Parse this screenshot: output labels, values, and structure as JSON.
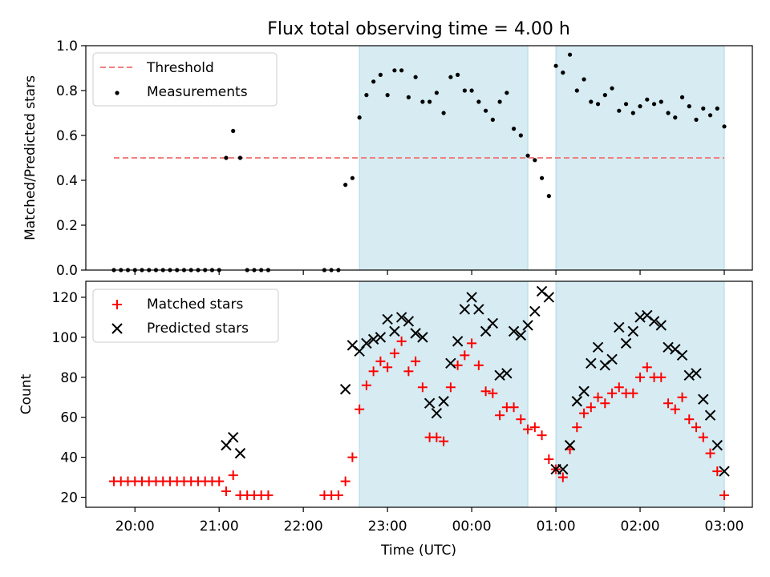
{
  "figure": {
    "title": "Flux total observing time = 4.00 h",
    "xlabel": "Time (UTC)"
  },
  "colors": {
    "shade": "#add8e6",
    "threshold": "#f08080",
    "matched": "#ff0000",
    "predicted": "#000000",
    "measurement": "#000000"
  },
  "chart_data": [
    {
      "type": "scatter",
      "ylabel": "Matched/Predicted stars",
      "ylim": [
        0,
        1.0
      ],
      "yticks": [
        "0.0",
        "0.2",
        "0.4",
        "0.6",
        "0.8",
        "1.0"
      ],
      "grid": false,
      "legend_position": "top-left",
      "shaded_intervals": [
        [
          "22:40",
          "00:40"
        ],
        [
          "01:00",
          "03:00"
        ]
      ],
      "threshold": {
        "name": "Threshold",
        "y": 0.5,
        "x_range": [
          "19:45",
          "03:00"
        ]
      },
      "series": [
        {
          "name": "Measurements",
          "points": [
            [
              "19:45",
              0
            ],
            [
              "19:50",
              0
            ],
            [
              "19:55",
              0
            ],
            [
              "20:00",
              0
            ],
            [
              "20:05",
              0
            ],
            [
              "20:10",
              0
            ],
            [
              "20:15",
              0
            ],
            [
              "20:20",
              0
            ],
            [
              "20:25",
              0
            ],
            [
              "20:30",
              0
            ],
            [
              "20:35",
              0
            ],
            [
              "20:40",
              0
            ],
            [
              "20:45",
              0
            ],
            [
              "20:50",
              0
            ],
            [
              "20:55",
              0
            ],
            [
              "21:00",
              0
            ],
            [
              "21:05",
              0.5
            ],
            [
              "21:10",
              0.62
            ],
            [
              "21:15",
              0.5
            ],
            [
              "21:20",
              0
            ],
            [
              "21:25",
              0
            ],
            [
              "21:30",
              0
            ],
            [
              "21:35",
              0
            ],
            [
              "22:15",
              0
            ],
            [
              "22:20",
              0
            ],
            [
              "22:25",
              0
            ],
            [
              "22:30",
              0.38
            ],
            [
              "22:35",
              0.41
            ],
            [
              "22:40",
              0.68
            ],
            [
              "22:45",
              0.78
            ],
            [
              "22:50",
              0.84
            ],
            [
              "22:55",
              0.87
            ],
            [
              "23:00",
              0.78
            ],
            [
              "23:05",
              0.89
            ],
            [
              "23:10",
              0.89
            ],
            [
              "23:15",
              0.77
            ],
            [
              "23:20",
              0.86
            ],
            [
              "23:25",
              0.75
            ],
            [
              "23:30",
              0.75
            ],
            [
              "23:35",
              0.79
            ],
            [
              "23:40",
              0.7
            ],
            [
              "23:45",
              0.86
            ],
            [
              "23:50",
              0.87
            ],
            [
              "23:55",
              0.8
            ],
            [
              "00:00",
              0.8
            ],
            [
              "00:05",
              0.75
            ],
            [
              "00:10",
              0.71
            ],
            [
              "00:15",
              0.67
            ],
            [
              "00:20",
              0.75
            ],
            [
              "00:25",
              0.79
            ],
            [
              "00:30",
              0.63
            ],
            [
              "00:35",
              0.6
            ],
            [
              "00:40",
              0.51
            ],
            [
              "00:45",
              0.49
            ],
            [
              "00:50",
              0.41
            ],
            [
              "00:55",
              0.33
            ],
            [
              "01:00",
              0.91
            ],
            [
              "01:05",
              0.88
            ],
            [
              "01:10",
              0.96
            ],
            [
              "01:15",
              0.8
            ],
            [
              "01:20",
              0.85
            ],
            [
              "01:25",
              0.75
            ],
            [
              "01:30",
              0.74
            ],
            [
              "01:35",
              0.78
            ],
            [
              "01:40",
              0.81
            ],
            [
              "01:45",
              0.71
            ],
            [
              "01:50",
              0.74
            ],
            [
              "01:55",
              0.7
            ],
            [
              "02:00",
              0.73
            ],
            [
              "02:05",
              0.76
            ],
            [
              "02:10",
              0.74
            ],
            [
              "02:15",
              0.75
            ],
            [
              "02:20",
              0.7
            ],
            [
              "02:25",
              0.68
            ],
            [
              "02:30",
              0.77
            ],
            [
              "02:35",
              0.73
            ],
            [
              "02:40",
              0.67
            ],
            [
              "02:45",
              0.72
            ],
            [
              "02:50",
              0.69
            ],
            [
              "02:55",
              0.72
            ],
            [
              "03:00",
              0.64
            ]
          ]
        }
      ]
    },
    {
      "type": "scatter",
      "ylabel": "Count",
      "ylim": [
        15,
        128
      ],
      "yticks": [
        "20",
        "40",
        "60",
        "80",
        "100",
        "120"
      ],
      "xticks": [
        "20:00",
        "21:00",
        "22:00",
        "23:00",
        "00:00",
        "01:00",
        "02:00",
        "03:00"
      ],
      "grid": false,
      "legend_position": "top-left",
      "shaded_intervals": [
        [
          "22:40",
          "00:40"
        ],
        [
          "01:00",
          "03:00"
        ]
      ],
      "series": [
        {
          "name": "Matched stars",
          "marker": "plus",
          "points": [
            [
              "19:45",
              28
            ],
            [
              "19:50",
              28
            ],
            [
              "19:55",
              28
            ],
            [
              "20:00",
              28
            ],
            [
              "20:05",
              28
            ],
            [
              "20:10",
              28
            ],
            [
              "20:15",
              28
            ],
            [
              "20:20",
              28
            ],
            [
              "20:25",
              28
            ],
            [
              "20:30",
              28
            ],
            [
              "20:35",
              28
            ],
            [
              "20:40",
              28
            ],
            [
              "20:45",
              28
            ],
            [
              "20:50",
              28
            ],
            [
              "20:55",
              28
            ],
            [
              "21:00",
              28
            ],
            [
              "21:05",
              23
            ],
            [
              "21:10",
              31
            ],
            [
              "21:15",
              21
            ],
            [
              "21:20",
              21
            ],
            [
              "21:25",
              21
            ],
            [
              "21:30",
              21
            ],
            [
              "21:35",
              21
            ],
            [
              "22:15",
              21
            ],
            [
              "22:20",
              21
            ],
            [
              "22:25",
              21
            ],
            [
              "22:30",
              28
            ],
            [
              "22:35",
              40
            ],
            [
              "22:40",
              64
            ],
            [
              "22:45",
              76
            ],
            [
              "22:50",
              83
            ],
            [
              "22:55",
              88
            ],
            [
              "23:00",
              85
            ],
            [
              "23:05",
              92
            ],
            [
              "23:10",
              98
            ],
            [
              "23:15",
              83
            ],
            [
              "23:20",
              88
            ],
            [
              "23:25",
              75
            ],
            [
              "23:30",
              50
            ],
            [
              "23:35",
              50
            ],
            [
              "23:40",
              48
            ],
            [
              "23:45",
              75
            ],
            [
              "23:50",
              86
            ],
            [
              "23:55",
              91
            ],
            [
              "00:00",
              97
            ],
            [
              "00:05",
              86
            ],
            [
              "00:10",
              73
            ],
            [
              "00:15",
              72
            ],
            [
              "00:20",
              61
            ],
            [
              "00:25",
              65
            ],
            [
              "00:30",
              65
            ],
            [
              "00:35",
              59
            ],
            [
              "00:40",
              54
            ],
            [
              "00:45",
              55
            ],
            [
              "00:50",
              51
            ],
            [
              "00:55",
              39
            ],
            [
              "01:00",
              34
            ],
            [
              "01:05",
              30
            ],
            [
              "01:10",
              44
            ],
            [
              "01:15",
              55
            ],
            [
              "01:20",
              62
            ],
            [
              "01:25",
              65
            ],
            [
              "01:30",
              70
            ],
            [
              "01:35",
              67
            ],
            [
              "01:40",
              72
            ],
            [
              "01:45",
              75
            ],
            [
              "01:50",
              72
            ],
            [
              "01:55",
              72
            ],
            [
              "02:00",
              80
            ],
            [
              "02:05",
              85
            ],
            [
              "02:10",
              80
            ],
            [
              "02:15",
              80
            ],
            [
              "02:20",
              67
            ],
            [
              "02:25",
              64
            ],
            [
              "02:30",
              70
            ],
            [
              "02:35",
              59
            ],
            [
              "02:40",
              55
            ],
            [
              "02:45",
              50
            ],
            [
              "02:50",
              42
            ],
            [
              "02:55",
              33
            ],
            [
              "03:00",
              21
            ]
          ]
        },
        {
          "name": "Predicted stars",
          "marker": "x",
          "points": [
            [
              "21:05",
              46
            ],
            [
              "21:10",
              50
            ],
            [
              "21:15",
              42
            ],
            [
              "22:30",
              74
            ],
            [
              "22:35",
              96
            ],
            [
              "22:40",
              93
            ],
            [
              "22:45",
              97
            ],
            [
              "22:50",
              99
            ],
            [
              "22:55",
              100
            ],
            [
              "23:00",
              109
            ],
            [
              "23:05",
              103
            ],
            [
              "23:10",
              110
            ],
            [
              "23:15",
              108
            ],
            [
              "23:20",
              102
            ],
            [
              "23:25",
              100
            ],
            [
              "23:30",
              67
            ],
            [
              "23:35",
              62
            ],
            [
              "23:40",
              68
            ],
            [
              "23:45",
              87
            ],
            [
              "23:50",
              98
            ],
            [
              "23:55",
              114
            ],
            [
              "00:00",
              120
            ],
            [
              "00:05",
              114
            ],
            [
              "00:10",
              103
            ],
            [
              "00:15",
              107
            ],
            [
              "00:20",
              81
            ],
            [
              "00:25",
              82
            ],
            [
              "00:30",
              103
            ],
            [
              "00:35",
              101
            ],
            [
              "00:40",
              106
            ],
            [
              "00:45",
              113
            ],
            [
              "00:50",
              123
            ],
            [
              "00:55",
              120
            ],
            [
              "01:00",
              34
            ],
            [
              "01:05",
              34
            ],
            [
              "01:10",
              46
            ],
            [
              "01:15",
              68
            ],
            [
              "01:20",
              73
            ],
            [
              "01:25",
              87
            ],
            [
              "01:30",
              95
            ],
            [
              "01:35",
              86
            ],
            [
              "01:40",
              89
            ],
            [
              "01:45",
              105
            ],
            [
              "01:50",
              97
            ],
            [
              "01:55",
              103
            ],
            [
              "02:00",
              110
            ],
            [
              "02:05",
              111
            ],
            [
              "02:10",
              108
            ],
            [
              "02:15",
              106
            ],
            [
              "02:20",
              95
            ],
            [
              "02:25",
              94
            ],
            [
              "02:30",
              91
            ],
            [
              "02:35",
              81
            ],
            [
              "02:40",
              82
            ],
            [
              "02:45",
              69
            ],
            [
              "02:50",
              61
            ],
            [
              "02:55",
              46
            ],
            [
              "03:00",
              33
            ]
          ]
        }
      ]
    }
  ]
}
